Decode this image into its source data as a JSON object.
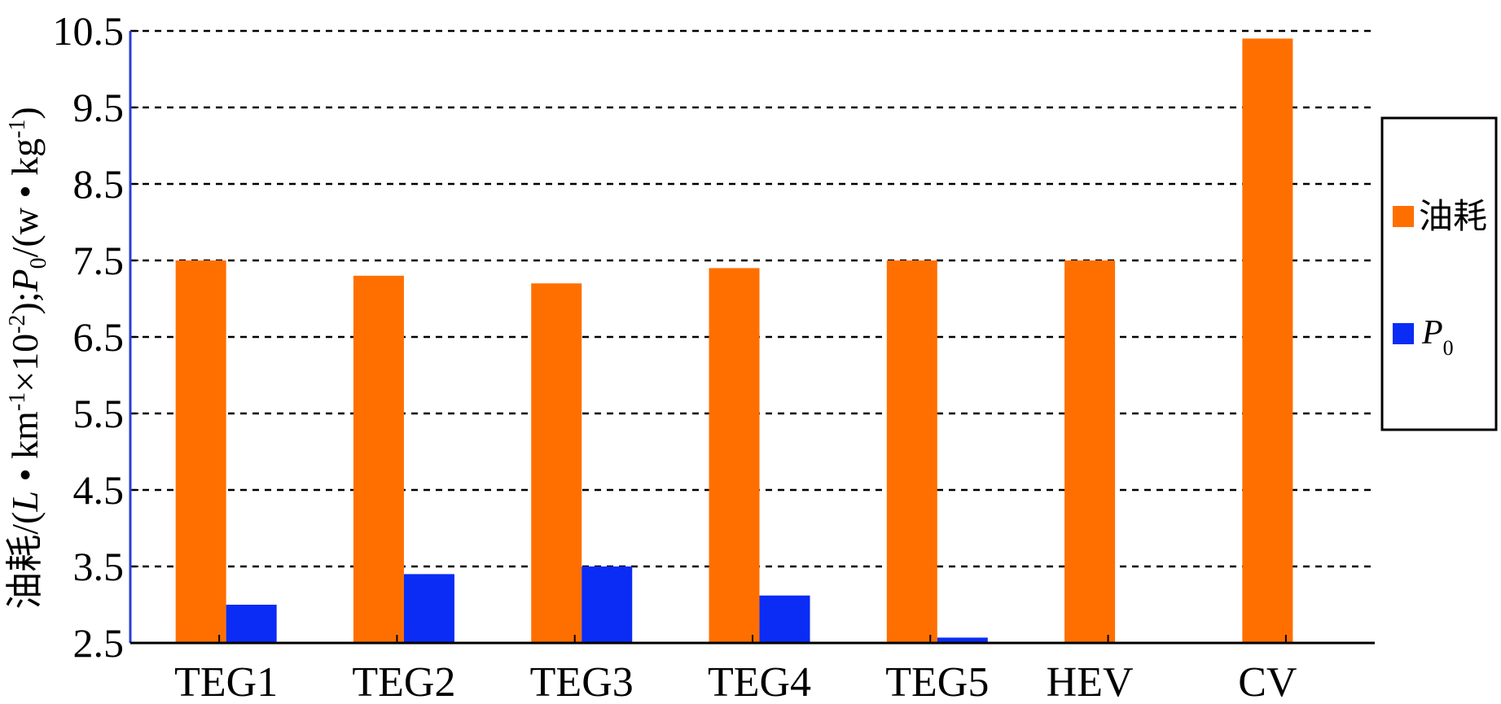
{
  "chart_data": {
    "type": "bar",
    "categories": [
      "TEG1",
      "TEG2",
      "TEG3",
      "TEG4",
      "TEG5",
      "HEV",
      "CV"
    ],
    "series": [
      {
        "name": "油耗",
        "color": "#ff6f00",
        "values": [
          7.5,
          7.3,
          7.2,
          7.4,
          7.5,
          7.5,
          10.4
        ]
      },
      {
        "name": "P0",
        "color": "#0a2cf5",
        "values": [
          3.0,
          3.4,
          3.5,
          3.12,
          2.57,
          null,
          null
        ]
      }
    ],
    "ylim": [
      2.5,
      10.5
    ],
    "yticks": [
      2.5,
      3.5,
      4.5,
      5.5,
      6.5,
      7.5,
      8.5,
      9.5,
      10.5
    ],
    "ytick_labels": [
      "2.5",
      "3.5",
      "4.5",
      "5.5",
      "6.5",
      "7.5",
      "8.5",
      "9.5",
      "10.5"
    ],
    "ylabel": {
      "prefix": "油耗/(",
      "L": "L",
      "part2": " • km",
      "sup1": "-1",
      "part3": "×10",
      "sup2": "-2",
      "part4": ");",
      "P": "P",
      "sub0": "0",
      "part5": "/(w • kg",
      "sup3": "-1",
      "part6": ")"
    },
    "grid": "horizontal-dashed",
    "legend": {
      "placement": "right",
      "items": [
        {
          "label": "油耗",
          "color": "#ff6f00"
        },
        {
          "label": "P",
          "sub": "0",
          "color": "#0a2cf5"
        }
      ]
    }
  }
}
